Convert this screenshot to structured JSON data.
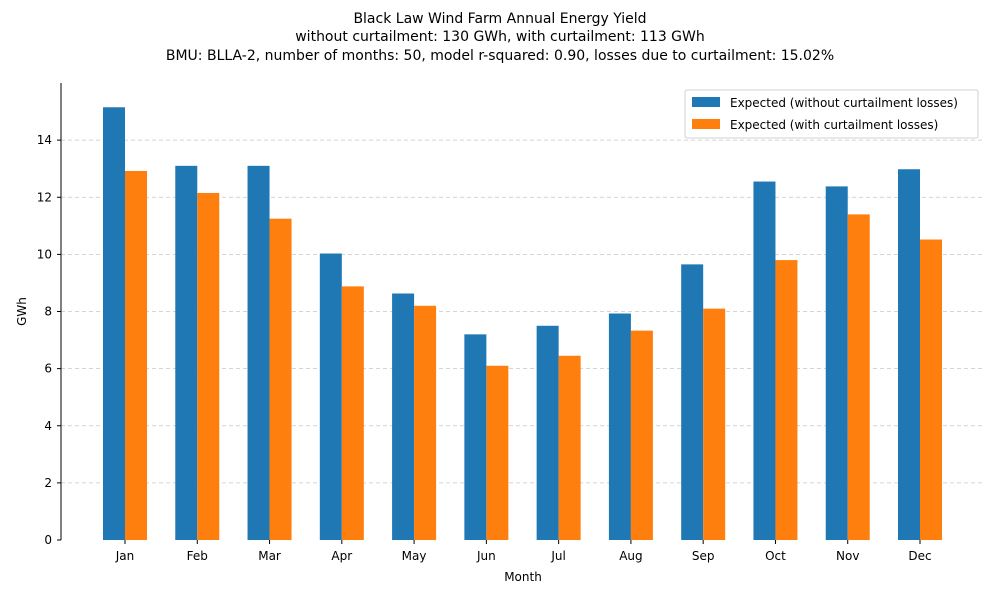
{
  "chart_data": {
    "type": "bar",
    "title_lines": [
      "Black Law Wind Farm Annual Energy Yield",
      "without curtailment: 130 GWh, with curtailment: 113 GWh",
      "BMU: BLLA-2, number of months: 50, model r-squared: 0.90, losses due to curtailment: 15.02%"
    ],
    "xlabel": "Month",
    "ylabel": "GWh",
    "categories": [
      "Jan",
      "Feb",
      "Mar",
      "Apr",
      "May",
      "Jun",
      "Jul",
      "Aug",
      "Sep",
      "Oct",
      "Nov",
      "Dec"
    ],
    "series": [
      {
        "name": "Expected (without curtailment losses)",
        "color": "#1f77b4",
        "values": [
          15.15,
          13.1,
          13.1,
          10.03,
          8.63,
          7.2,
          7.5,
          7.93,
          9.65,
          12.55,
          12.38,
          12.98
        ]
      },
      {
        "name": "Expected (with curtailment losses)",
        "color": "#ff7f0e",
        "values": [
          12.92,
          12.15,
          11.25,
          8.88,
          8.2,
          6.1,
          6.45,
          7.33,
          8.1,
          9.8,
          11.4,
          10.52
        ]
      }
    ],
    "ylim": [
      0,
      16
    ],
    "yticks": [
      "0",
      "2",
      "4",
      "6",
      "8",
      "10",
      "12",
      "14"
    ],
    "grid": "horizontal-dashed",
    "legend_position": "top-right"
  }
}
